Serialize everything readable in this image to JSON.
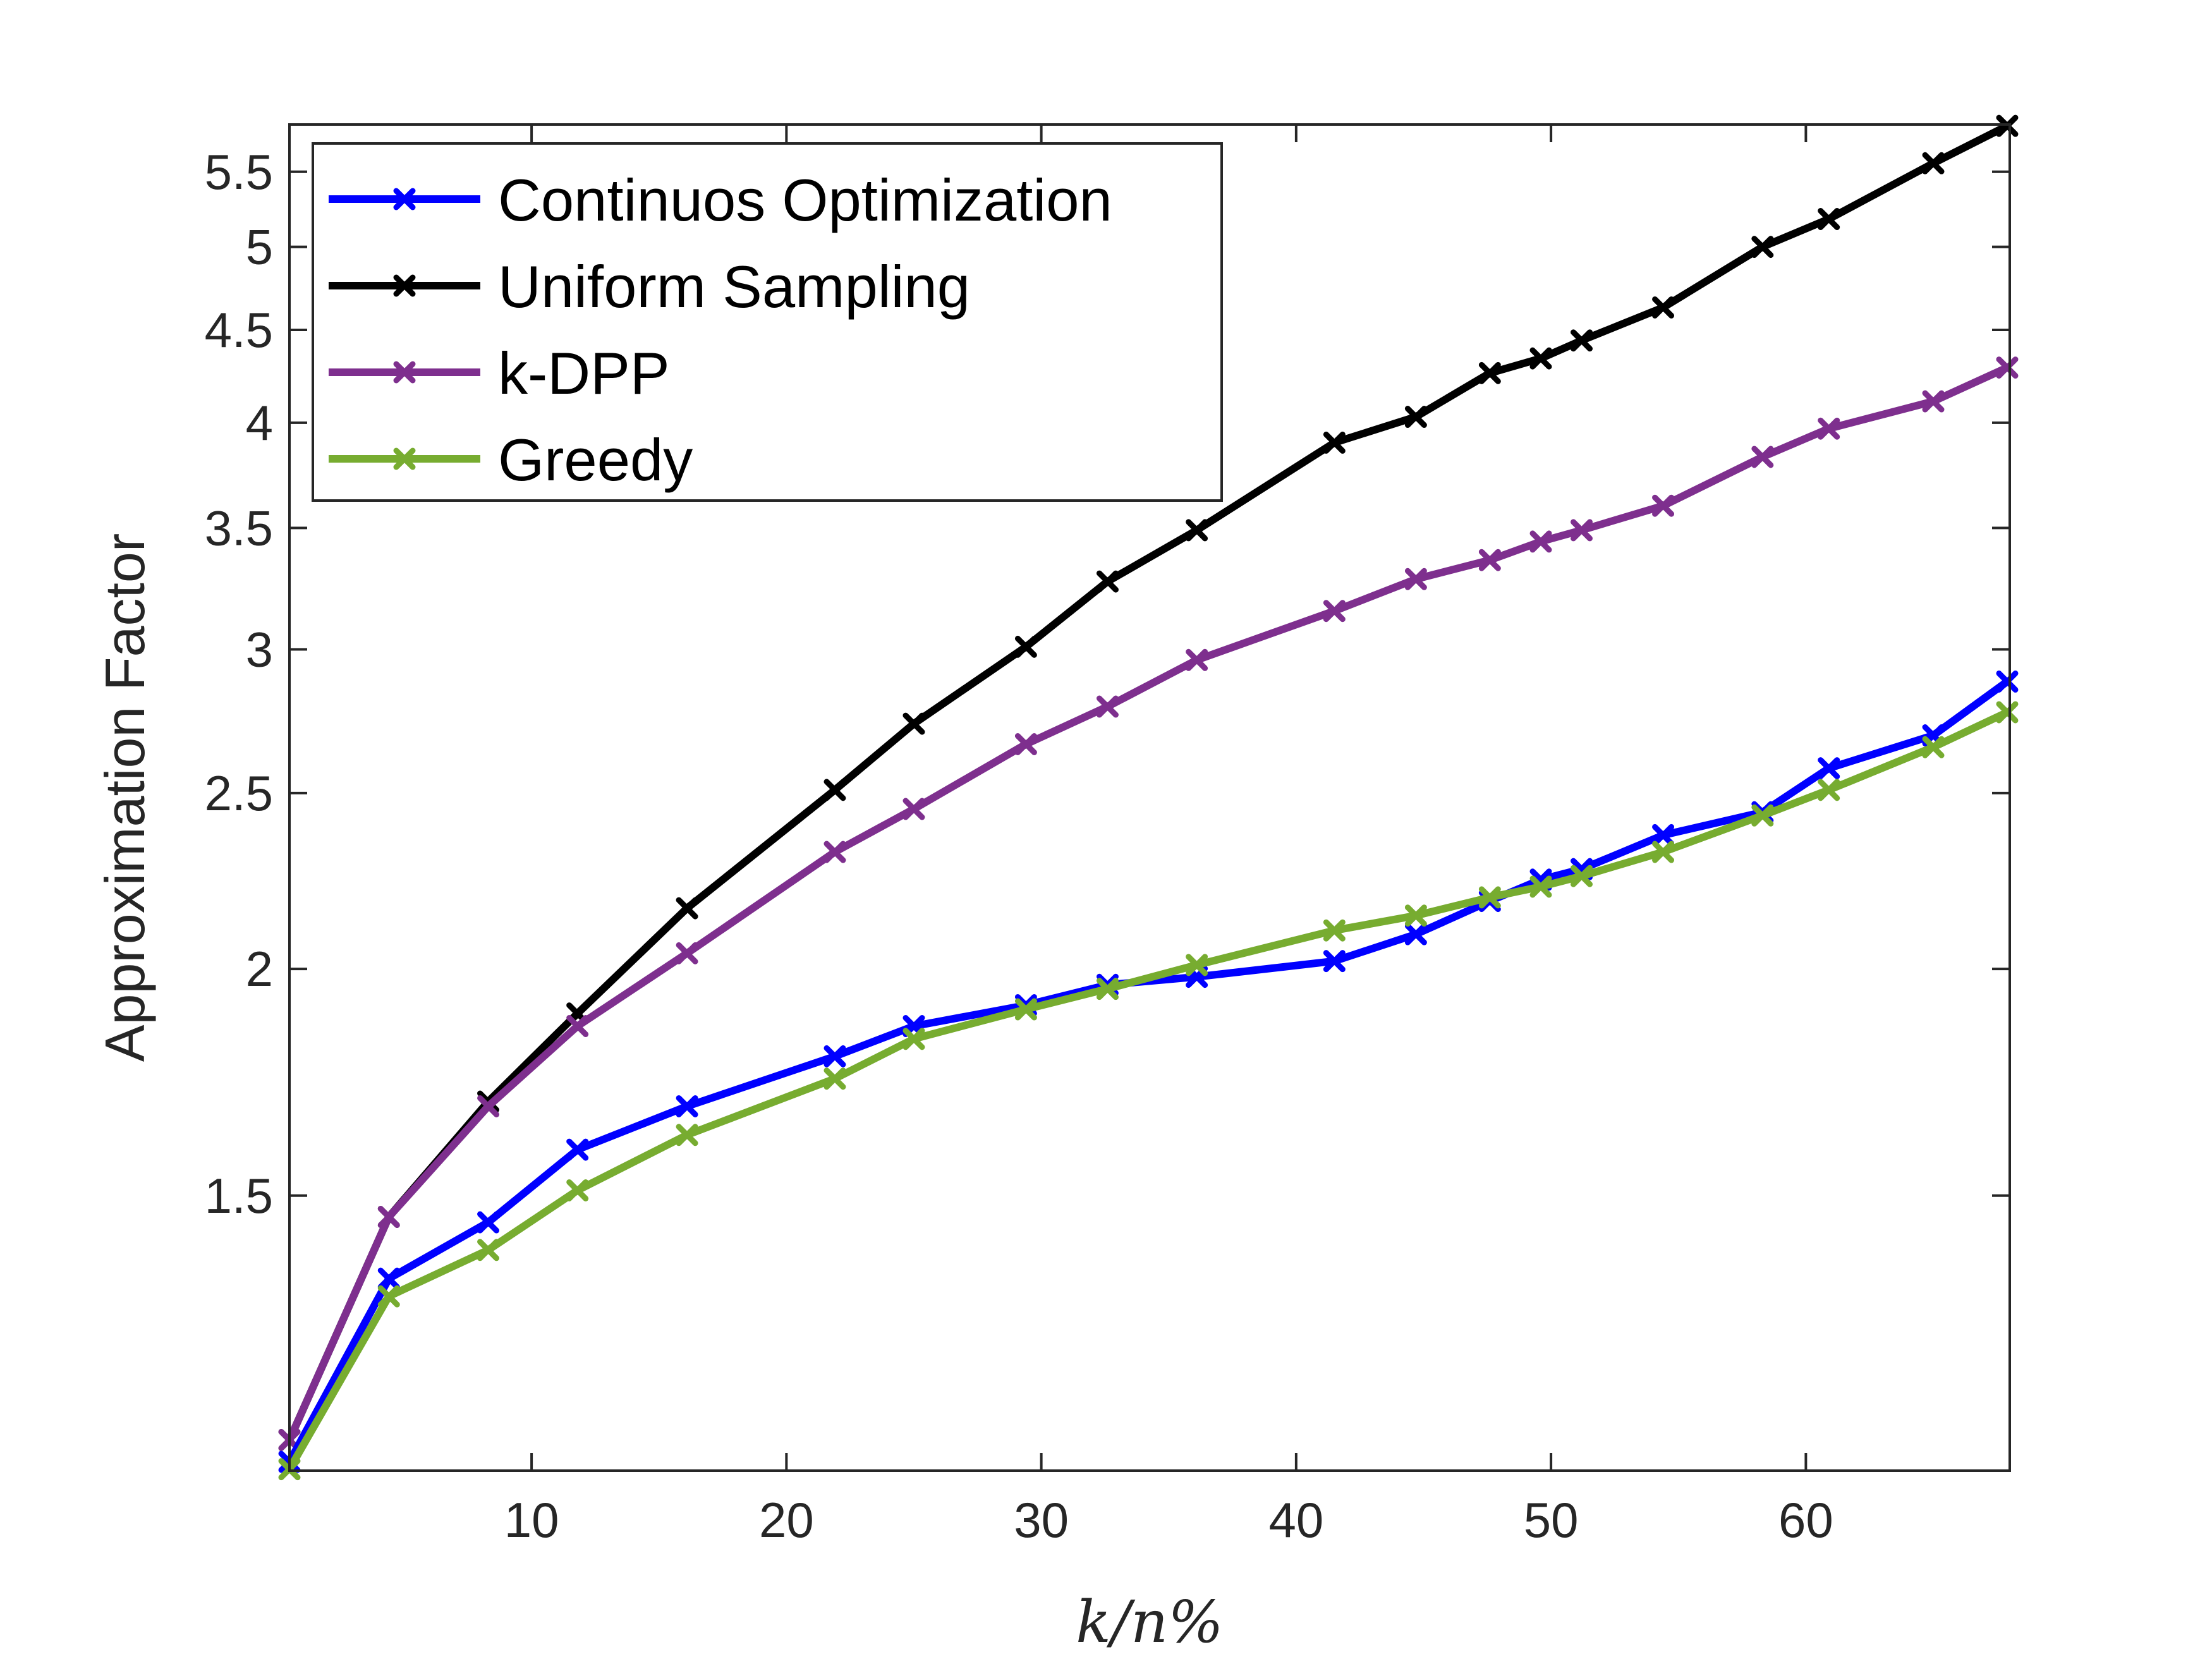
{
  "chart_data": {
    "type": "line",
    "xlabel": "k/n%",
    "ylabel": "Approximation Factor",
    "xlim": [
      0.5,
      68
    ],
    "ylim": [
      1.058,
      5.84
    ],
    "yscale": "log",
    "xticks": [
      10,
      20,
      30,
      40,
      50,
      60
    ],
    "yticks": [
      1.5,
      2,
      2.5,
      3,
      3.5,
      4,
      4.5,
      5,
      5.5
    ],
    "ytick_labels": [
      "1.5",
      "2",
      "2.5",
      "3",
      "3.5",
      "4",
      "4.5",
      "5",
      "5.5"
    ],
    "grid": false,
    "legend_position": "top-left",
    "x": [
      0.5,
      4.4,
      8.3,
      11.8,
      16.1,
      21.9,
      25.0,
      29.4,
      32.6,
      36.1,
      41.5,
      44.7,
      47.6,
      49.6,
      51.2,
      54.4,
      58.3,
      60.9,
      65.0,
      67.9
    ],
    "series": [
      {
        "name": "Continuos Optimization",
        "color": "#0000ff",
        "values": [
          1.07,
          1.35,
          1.45,
          1.59,
          1.68,
          1.79,
          1.86,
          1.91,
          1.96,
          1.98,
          2.02,
          2.09,
          2.18,
          2.24,
          2.27,
          2.37,
          2.44,
          2.58,
          2.69,
          2.88
        ]
      },
      {
        "name": "Uniform Sampling",
        "color": "#000000",
        "values": [
          1.1,
          1.46,
          1.69,
          1.89,
          2.16,
          2.51,
          2.73,
          3.01,
          3.27,
          3.49,
          3.9,
          4.03,
          4.26,
          4.34,
          4.44,
          4.63,
          5.0,
          5.18,
          5.56,
          5.83
        ]
      },
      {
        "name": "k-DPP",
        "color": "#7e2f8e",
        "values": [
          1.1,
          1.46,
          1.68,
          1.86,
          2.04,
          2.32,
          2.45,
          2.66,
          2.79,
          2.96,
          3.15,
          3.28,
          3.36,
          3.44,
          3.49,
          3.6,
          3.83,
          3.97,
          4.11,
          4.29
        ]
      },
      {
        "name": "Greedy",
        "color": "#77ac30",
        "values": [
          1.06,
          1.32,
          1.4,
          1.51,
          1.62,
          1.74,
          1.83,
          1.9,
          1.95,
          2.01,
          2.1,
          2.14,
          2.19,
          2.22,
          2.25,
          2.32,
          2.43,
          2.51,
          2.65,
          2.77
        ]
      }
    ]
  }
}
